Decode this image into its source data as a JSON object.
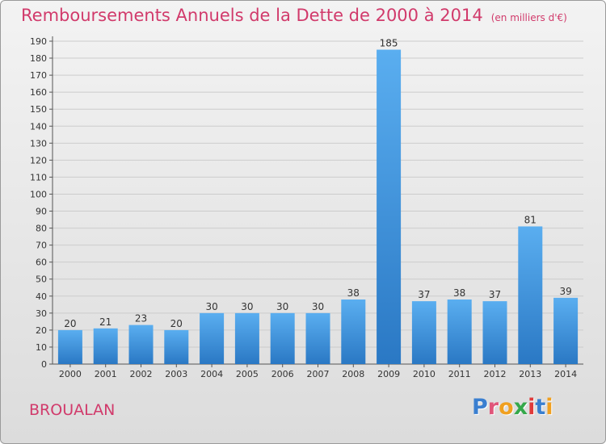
{
  "chart_data": {
    "type": "bar",
    "title": "Remboursements Annuels de la Dette de 2000 à 2014",
    "unit_label": "(en milliers d'€)",
    "categories": [
      "2000",
      "2001",
      "2002",
      "2003",
      "2004",
      "2005",
      "2006",
      "2007",
      "2008",
      "2009",
      "2010",
      "2011",
      "2012",
      "2013",
      "2014"
    ],
    "values": [
      20,
      21,
      23,
      20,
      30,
      30,
      30,
      30,
      38,
      185,
      37,
      38,
      37,
      81,
      39
    ],
    "ylim": [
      0,
      190
    ],
    "yticks": [
      0,
      10,
      20,
      30,
      40,
      50,
      60,
      70,
      80,
      90,
      100,
      110,
      120,
      130,
      140,
      150,
      160,
      170,
      180,
      190
    ],
    "grid": true,
    "bar_color": "#3a8fd8"
  },
  "commune": "BROUALAN",
  "logo": {
    "text": "Proxiti",
    "letter_colors": [
      "#3a7fd0",
      "#e0567a",
      "#f0a020",
      "#35a84a",
      "#e03a3a",
      "#3a7fd0",
      "#f0a020"
    ]
  }
}
